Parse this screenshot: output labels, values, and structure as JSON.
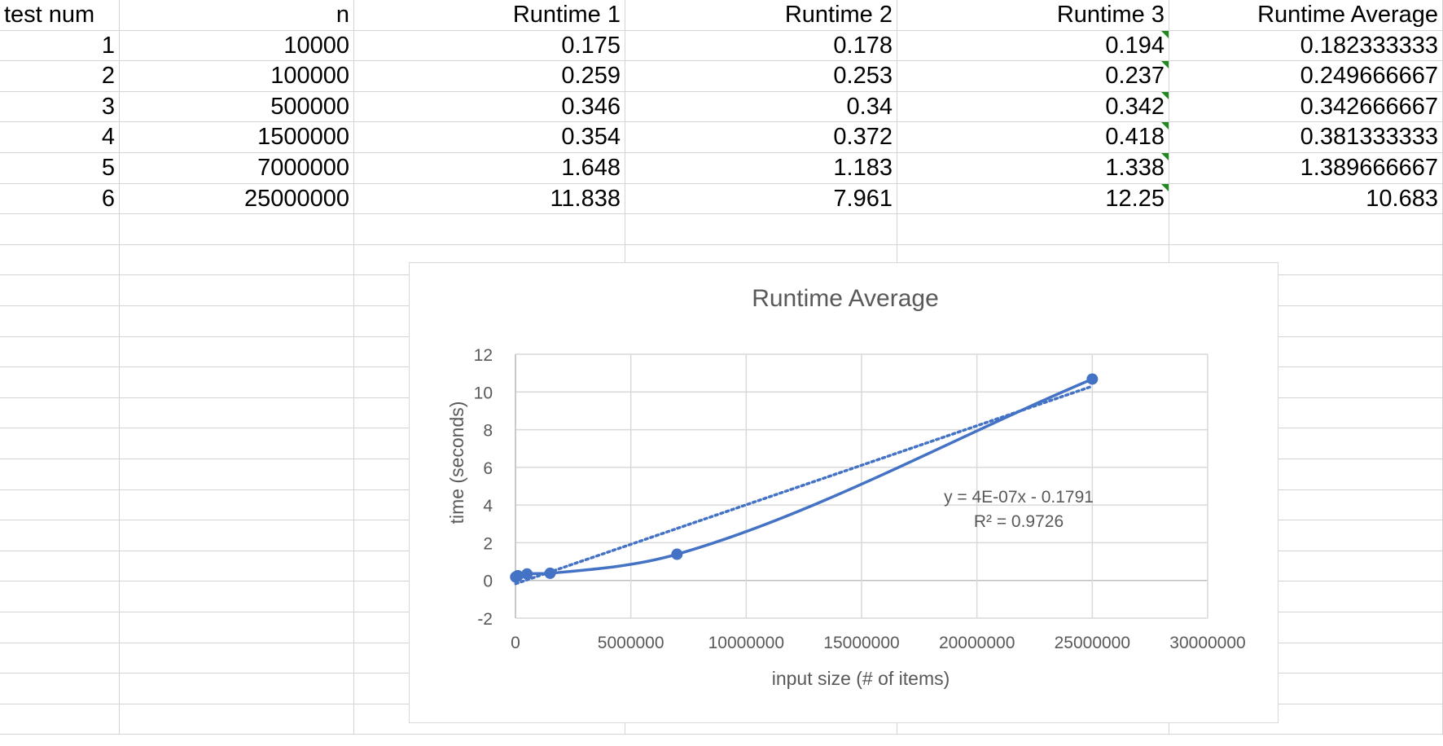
{
  "sheet": {
    "headers": [
      "test num",
      "n",
      "Runtime 1",
      "Runtime 2",
      "Runtime 3",
      "Runtime Average"
    ],
    "rows": [
      [
        "1",
        "10000",
        "0.175",
        "0.178",
        "0.194",
        "0.182333333"
      ],
      [
        "2",
        "100000",
        "0.259",
        "0.253",
        "0.237",
        "0.249666667"
      ],
      [
        "3",
        "500000",
        "0.346",
        "0.34",
        "0.342",
        "0.342666667"
      ],
      [
        "4",
        "1500000",
        "0.354",
        "0.372",
        "0.418",
        "0.381333333"
      ],
      [
        "5",
        "7000000",
        "1.648",
        "1.183",
        "1.338",
        "1.389666667"
      ],
      [
        "6",
        "25000000",
        "11.838",
        "7.961",
        "12.25",
        "10.683"
      ]
    ]
  },
  "chart_data": {
    "type": "scatter",
    "title": "Runtime Average",
    "xlabel": "input size (# of items)",
    "ylabel": "time (seconds)",
    "xlim": [
      0,
      30000000
    ],
    "ylim": [
      -2,
      12
    ],
    "x_ticks": [
      "0",
      "5000000",
      "10000000",
      "15000000",
      "20000000",
      "25000000",
      "30000000"
    ],
    "y_ticks": [
      "-2",
      "0",
      "2",
      "4",
      "6",
      "8",
      "10",
      "12"
    ],
    "grid": true,
    "line_style": "smooth",
    "series": [
      {
        "x": [
          10000,
          100000,
          500000,
          1500000,
          7000000,
          25000000
        ],
        "y": [
          0.182333333,
          0.249666667,
          0.342666667,
          0.381333333,
          1.389666667,
          10.683
        ],
        "color": "#4472c4"
      }
    ],
    "trendline": {
      "type": "linear",
      "style": "dotted",
      "equation_label": "y = 4E-07x - 0.1791",
      "r2_label": "R² = 0.9726"
    },
    "colors": {
      "series": "#4472c4",
      "grid": "#d9d9d9",
      "axis_text": "#595959",
      "title": "#595959",
      "flag": "#1e8a1e"
    }
  }
}
